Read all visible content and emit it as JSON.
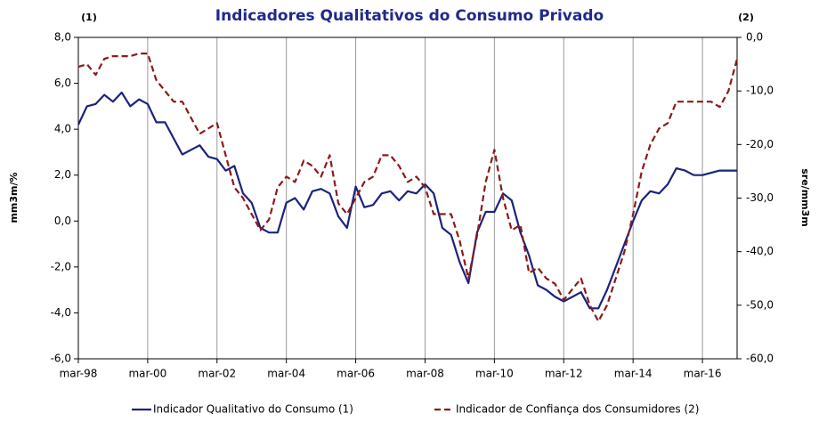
{
  "chart_data": {
    "type": "line",
    "title": "Indicadores Qualitativos do Consumo Privado",
    "y_axis_marker": "(1)",
    "y2_axis_marker": "(2)",
    "y_label": "mm3m/%",
    "y2_label": "sre/mm3m",
    "categories": [
      "mar-98",
      null,
      null,
      null,
      null,
      null,
      null,
      null,
      "mar-00",
      null,
      null,
      null,
      null,
      null,
      null,
      null,
      "mar-02",
      null,
      null,
      null,
      null,
      null,
      null,
      null,
      "mar-04",
      null,
      null,
      null,
      null,
      null,
      null,
      null,
      "mar-06",
      null,
      null,
      null,
      null,
      null,
      null,
      null,
      "mar-08",
      null,
      null,
      null,
      null,
      null,
      null,
      null,
      "mar-10",
      null,
      null,
      null,
      null,
      null,
      null,
      null,
      "mar-12",
      null,
      null,
      null,
      null,
      null,
      null,
      null,
      "mar-14",
      null,
      null,
      null,
      null,
      null,
      null,
      null,
      "mar-16",
      null,
      null,
      null,
      null
    ],
    "series": [
      {
        "name": "Indicador Qualitativo do Consumo (1)",
        "color": "#1a237e",
        "axis": "y",
        "values": [
          4.2,
          5.0,
          5.1,
          5.5,
          5.2,
          5.6,
          5.0,
          5.3,
          5.1,
          4.3,
          4.3,
          3.6,
          2.9,
          3.1,
          3.3,
          2.8,
          2.7,
          2.2,
          2.4,
          1.2,
          0.8,
          -0.3,
          -0.5,
          -0.5,
          0.8,
          1.0,
          0.5,
          1.3,
          1.4,
          1.2,
          0.2,
          -0.3,
          1.5,
          0.6,
          0.7,
          1.2,
          1.3,
          0.9,
          1.3,
          1.2,
          1.6,
          1.2,
          -0.3,
          -0.6,
          -1.8,
          -2.7,
          -0.5,
          0.4,
          0.4,
          1.2,
          0.9,
          -0.5,
          -1.5,
          -2.8,
          -3.0,
          -3.3,
          -3.5,
          -3.3,
          -3.1,
          -3.8,
          -3.8,
          -3.0,
          -2.0,
          -1.0,
          0.0,
          0.9,
          1.3,
          1.2,
          1.6,
          2.3,
          2.2,
          2.0,
          2.0,
          2.1,
          2.2,
          2.2,
          2.2
        ]
      },
      {
        "name": "Indicador de Confiança dos Consumidores (2)",
        "color": "#8b1a1a",
        "axis": "y2",
        "dashed": true,
        "values": [
          -5.5,
          -5,
          -7,
          -4,
          -3.5,
          -3.5,
          -3.5,
          -3,
          -3,
          -8,
          -10,
          -12,
          -12,
          -15,
          -18,
          -17,
          -16,
          -22,
          -28,
          -30,
          -33,
          -36,
          -34,
          -28,
          -26,
          -27,
          -23,
          -24,
          -26,
          -22,
          -31,
          -33,
          -30,
          -27,
          -26,
          -22,
          -22,
          -24,
          -27,
          -26,
          -28,
          -33,
          -33,
          -33,
          -38,
          -45,
          -37,
          -27,
          -21,
          -30,
          -36,
          -35,
          -44,
          -43,
          -45,
          -46,
          -49,
          -47,
          -45,
          -50,
          -53,
          -50,
          -45,
          -40,
          -33,
          -25,
          -20,
          -17,
          -16,
          -12,
          -12,
          -12,
          -12,
          -12,
          -13,
          -10,
          -4
        ]
      }
    ],
    "ylim": [
      -6,
      8
    ],
    "yticks": [
      {
        "value": -6,
        "label": "-6,0"
      },
      {
        "value": -4,
        "label": "-4,0"
      },
      {
        "value": -2,
        "label": "-2,0"
      },
      {
        "value": 0,
        "label": "0,0"
      },
      {
        "value": 2,
        "label": "2,0"
      },
      {
        "value": 4,
        "label": "4,0"
      },
      {
        "value": 6,
        "label": "6,0"
      },
      {
        "value": 8,
        "label": "8,0"
      }
    ],
    "y2lim": [
      -60,
      0
    ],
    "y2ticks": [
      {
        "value": -60,
        "label": "-60,0"
      },
      {
        "value": -50,
        "label": "-50,0"
      },
      {
        "value": -40,
        "label": "-40,0"
      },
      {
        "value": -30,
        "label": "-30,0"
      },
      {
        "value": -20,
        "label": "-20,0"
      },
      {
        "value": -10,
        "label": "-10,0"
      },
      {
        "value": 0,
        "label": "0,0"
      }
    ],
    "vertical_grid": true
  }
}
